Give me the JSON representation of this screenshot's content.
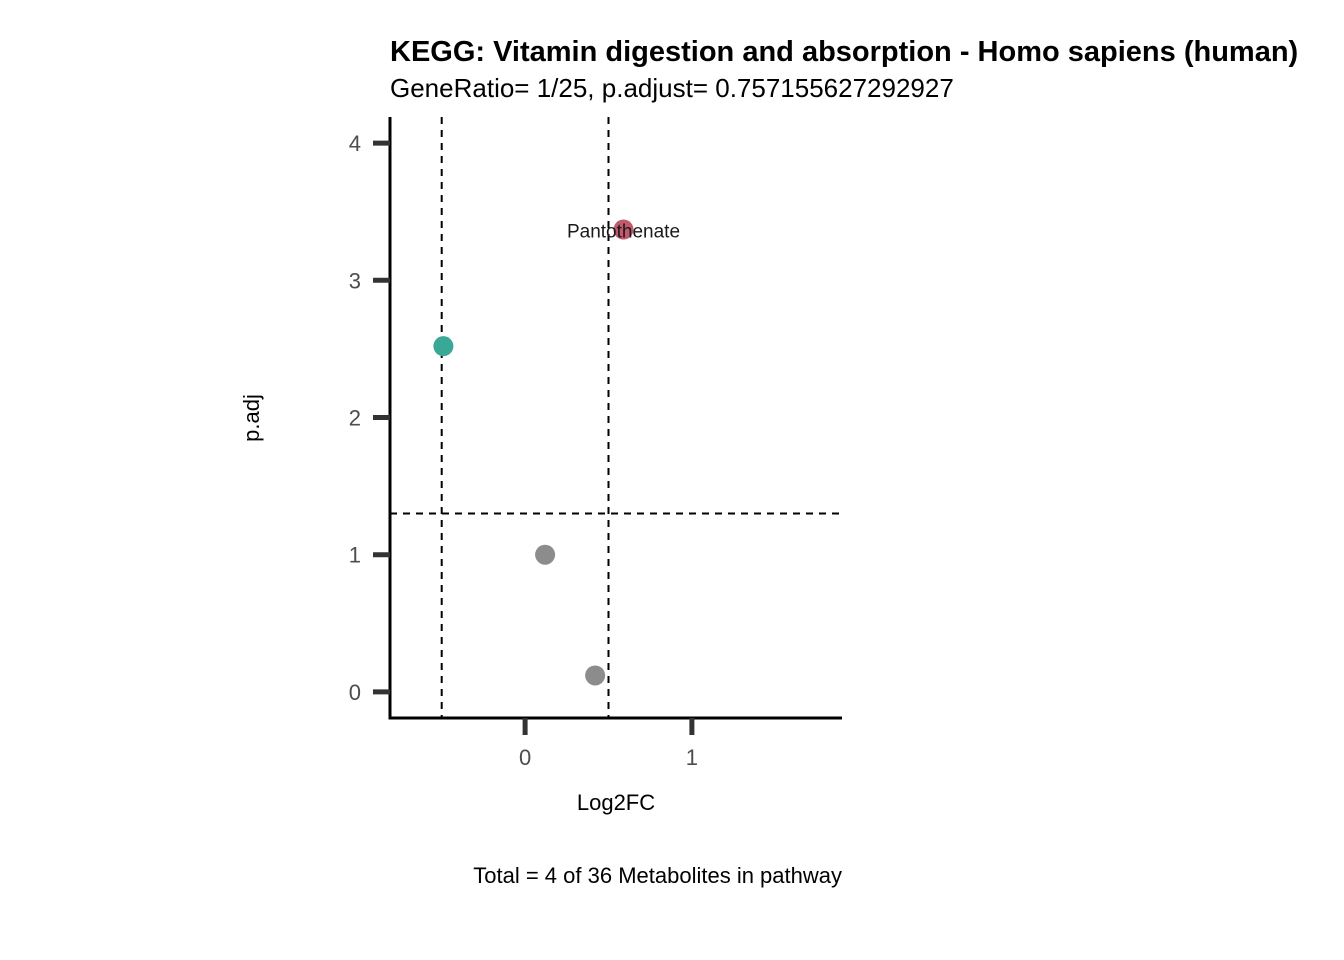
{
  "chart_data": {
    "type": "scatter",
    "title": "KEGG: Vitamin digestion and absorption - Homo sapiens (human)",
    "subtitle": "GeneRatio= 1/25, p.adjust= 0.757155627292927",
    "xlabel": "Log2FC",
    "ylabel": "p.adj",
    "caption": "Total = 4 of 36 Metabolites in pathway",
    "xlim": [
      -0.81,
      1.9
    ],
    "ylim": [
      -0.19,
      4.19
    ],
    "x_ticks": [
      0,
      1
    ],
    "y_ticks": [
      0,
      1,
      2,
      3,
      4
    ],
    "grid": false,
    "legend": "none",
    "thresholds": {
      "x": [
        -0.5,
        0.5
      ],
      "y": 1.3
    },
    "colors": {
      "up": "#c25a6e",
      "down": "#3aa896",
      "ns": "#8c8c8c",
      "axis": "#000000",
      "tick": "#333333",
      "threshold_line": "#000000"
    },
    "points": [
      {
        "x": 0.59,
        "y": 3.37,
        "group": "up",
        "label": "Pantothenate"
      },
      {
        "x": -0.49,
        "y": 2.52,
        "group": "down",
        "label": ""
      },
      {
        "x": 0.12,
        "y": 1.0,
        "group": "ns",
        "label": ""
      },
      {
        "x": 0.42,
        "y": 0.12,
        "group": "ns",
        "label": ""
      }
    ]
  }
}
